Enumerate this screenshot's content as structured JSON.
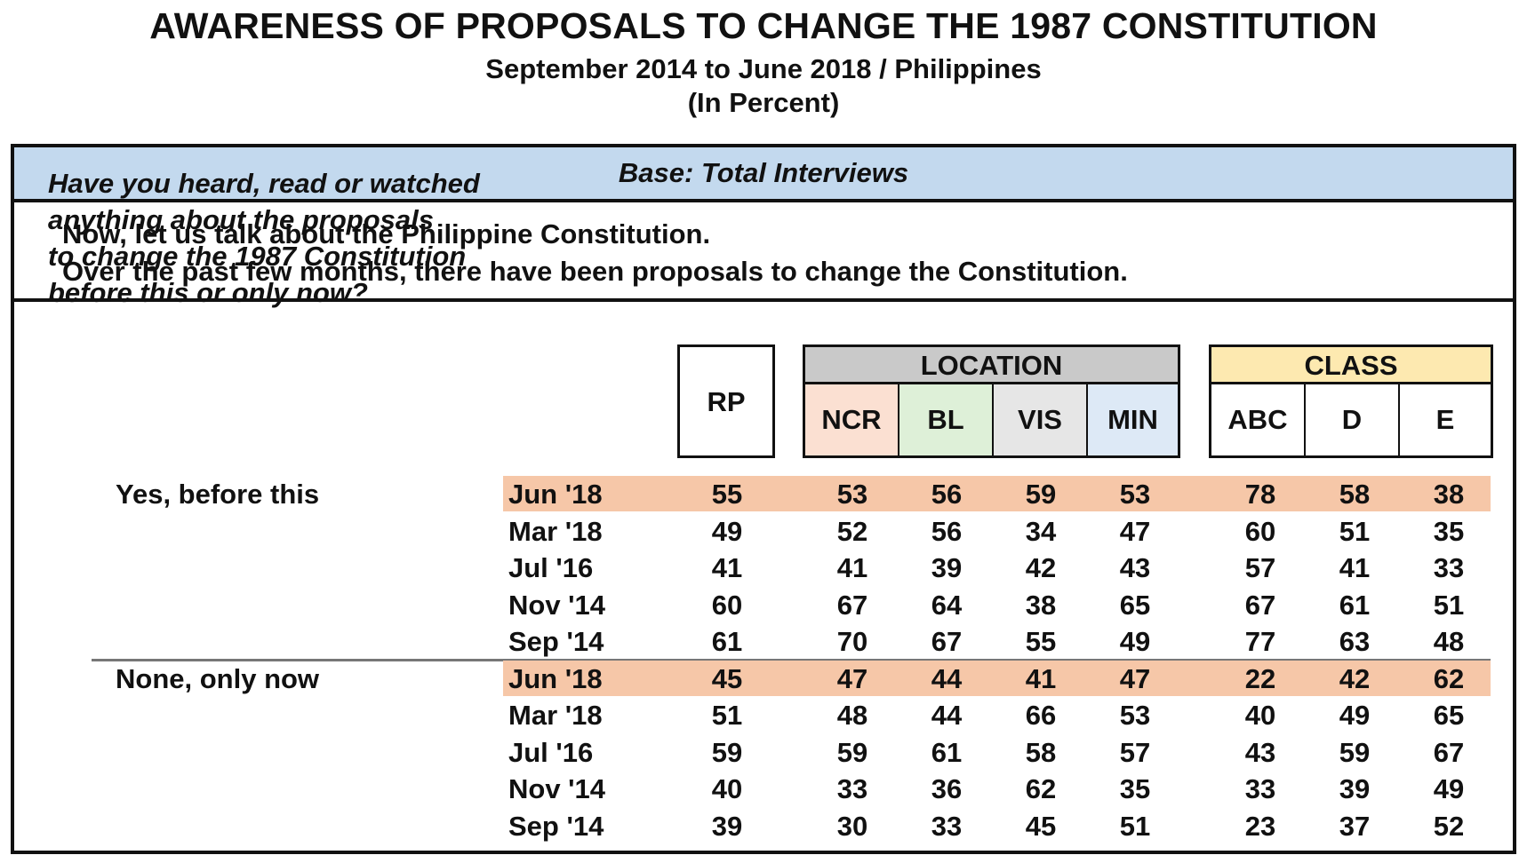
{
  "title": "AWARENESS OF PROPOSALS TO CHANGE THE 1987 CONSTITUTION",
  "subtitle": "September 2014 to June 2018 / Philippines",
  "unit": "(In Percent)",
  "base": "Base: Total Interviews",
  "intro": [
    "Now, let us talk about the Philippine Constitution.",
    "Over the past few months, there have been proposals to change the Constitution."
  ],
  "question": [
    "Have you heard, read or watched",
    "anything about the proposals",
    "to change the 1987 Constitution",
    "before this or only now?"
  ],
  "headers": {
    "rp": "RP",
    "location": "LOCATION",
    "location_cols": [
      "NCR",
      "BL",
      "VIS",
      "MIN"
    ],
    "class": "CLASS",
    "class_cols": [
      "ABC",
      "D",
      "E"
    ]
  },
  "colors": {
    "highlight_row": "#f6c7a8",
    "base_band": "#c3d9ee",
    "location_header": "#c9c9c9",
    "class_header": "#fde9b0",
    "ncr": "#fbe0d2",
    "bl": "#def0d8",
    "vis": "#e6e6e6",
    "min": "#dde9f6"
  },
  "chart_data": {
    "type": "table",
    "columns": [
      "RP",
      "NCR",
      "BL",
      "VIS",
      "MIN",
      "ABC",
      "D",
      "E"
    ],
    "groups": [
      {
        "label": "Yes, before this",
        "rows": [
          {
            "date": "Jun '18",
            "values": [
              55,
              53,
              56,
              59,
              53,
              78,
              58,
              38
            ],
            "highlight": true
          },
          {
            "date": "Mar '18",
            "values": [
              49,
              52,
              56,
              34,
              47,
              60,
              51,
              35
            ]
          },
          {
            "date": "Jul '16",
            "values": [
              41,
              41,
              39,
              42,
              43,
              57,
              41,
              33
            ]
          },
          {
            "date": "Nov '14",
            "values": [
              60,
              67,
              64,
              38,
              65,
              67,
              61,
              51
            ]
          },
          {
            "date": "Sep '14",
            "values": [
              61,
              70,
              67,
              55,
              49,
              77,
              63,
              48
            ]
          }
        ]
      },
      {
        "label": "None, only now",
        "rows": [
          {
            "date": "Jun '18",
            "values": [
              45,
              47,
              44,
              41,
              47,
              22,
              42,
              62
            ],
            "highlight": true
          },
          {
            "date": "Mar '18",
            "values": [
              51,
              48,
              44,
              66,
              53,
              40,
              49,
              65
            ]
          },
          {
            "date": "Jul '16",
            "values": [
              59,
              59,
              61,
              58,
              57,
              43,
              59,
              67
            ]
          },
          {
            "date": "Nov '14",
            "values": [
              40,
              33,
              36,
              62,
              35,
              33,
              39,
              49
            ]
          },
          {
            "date": "Sep '14",
            "values": [
              39,
              30,
              33,
              45,
              51,
              23,
              37,
              52
            ]
          }
        ]
      }
    ]
  }
}
